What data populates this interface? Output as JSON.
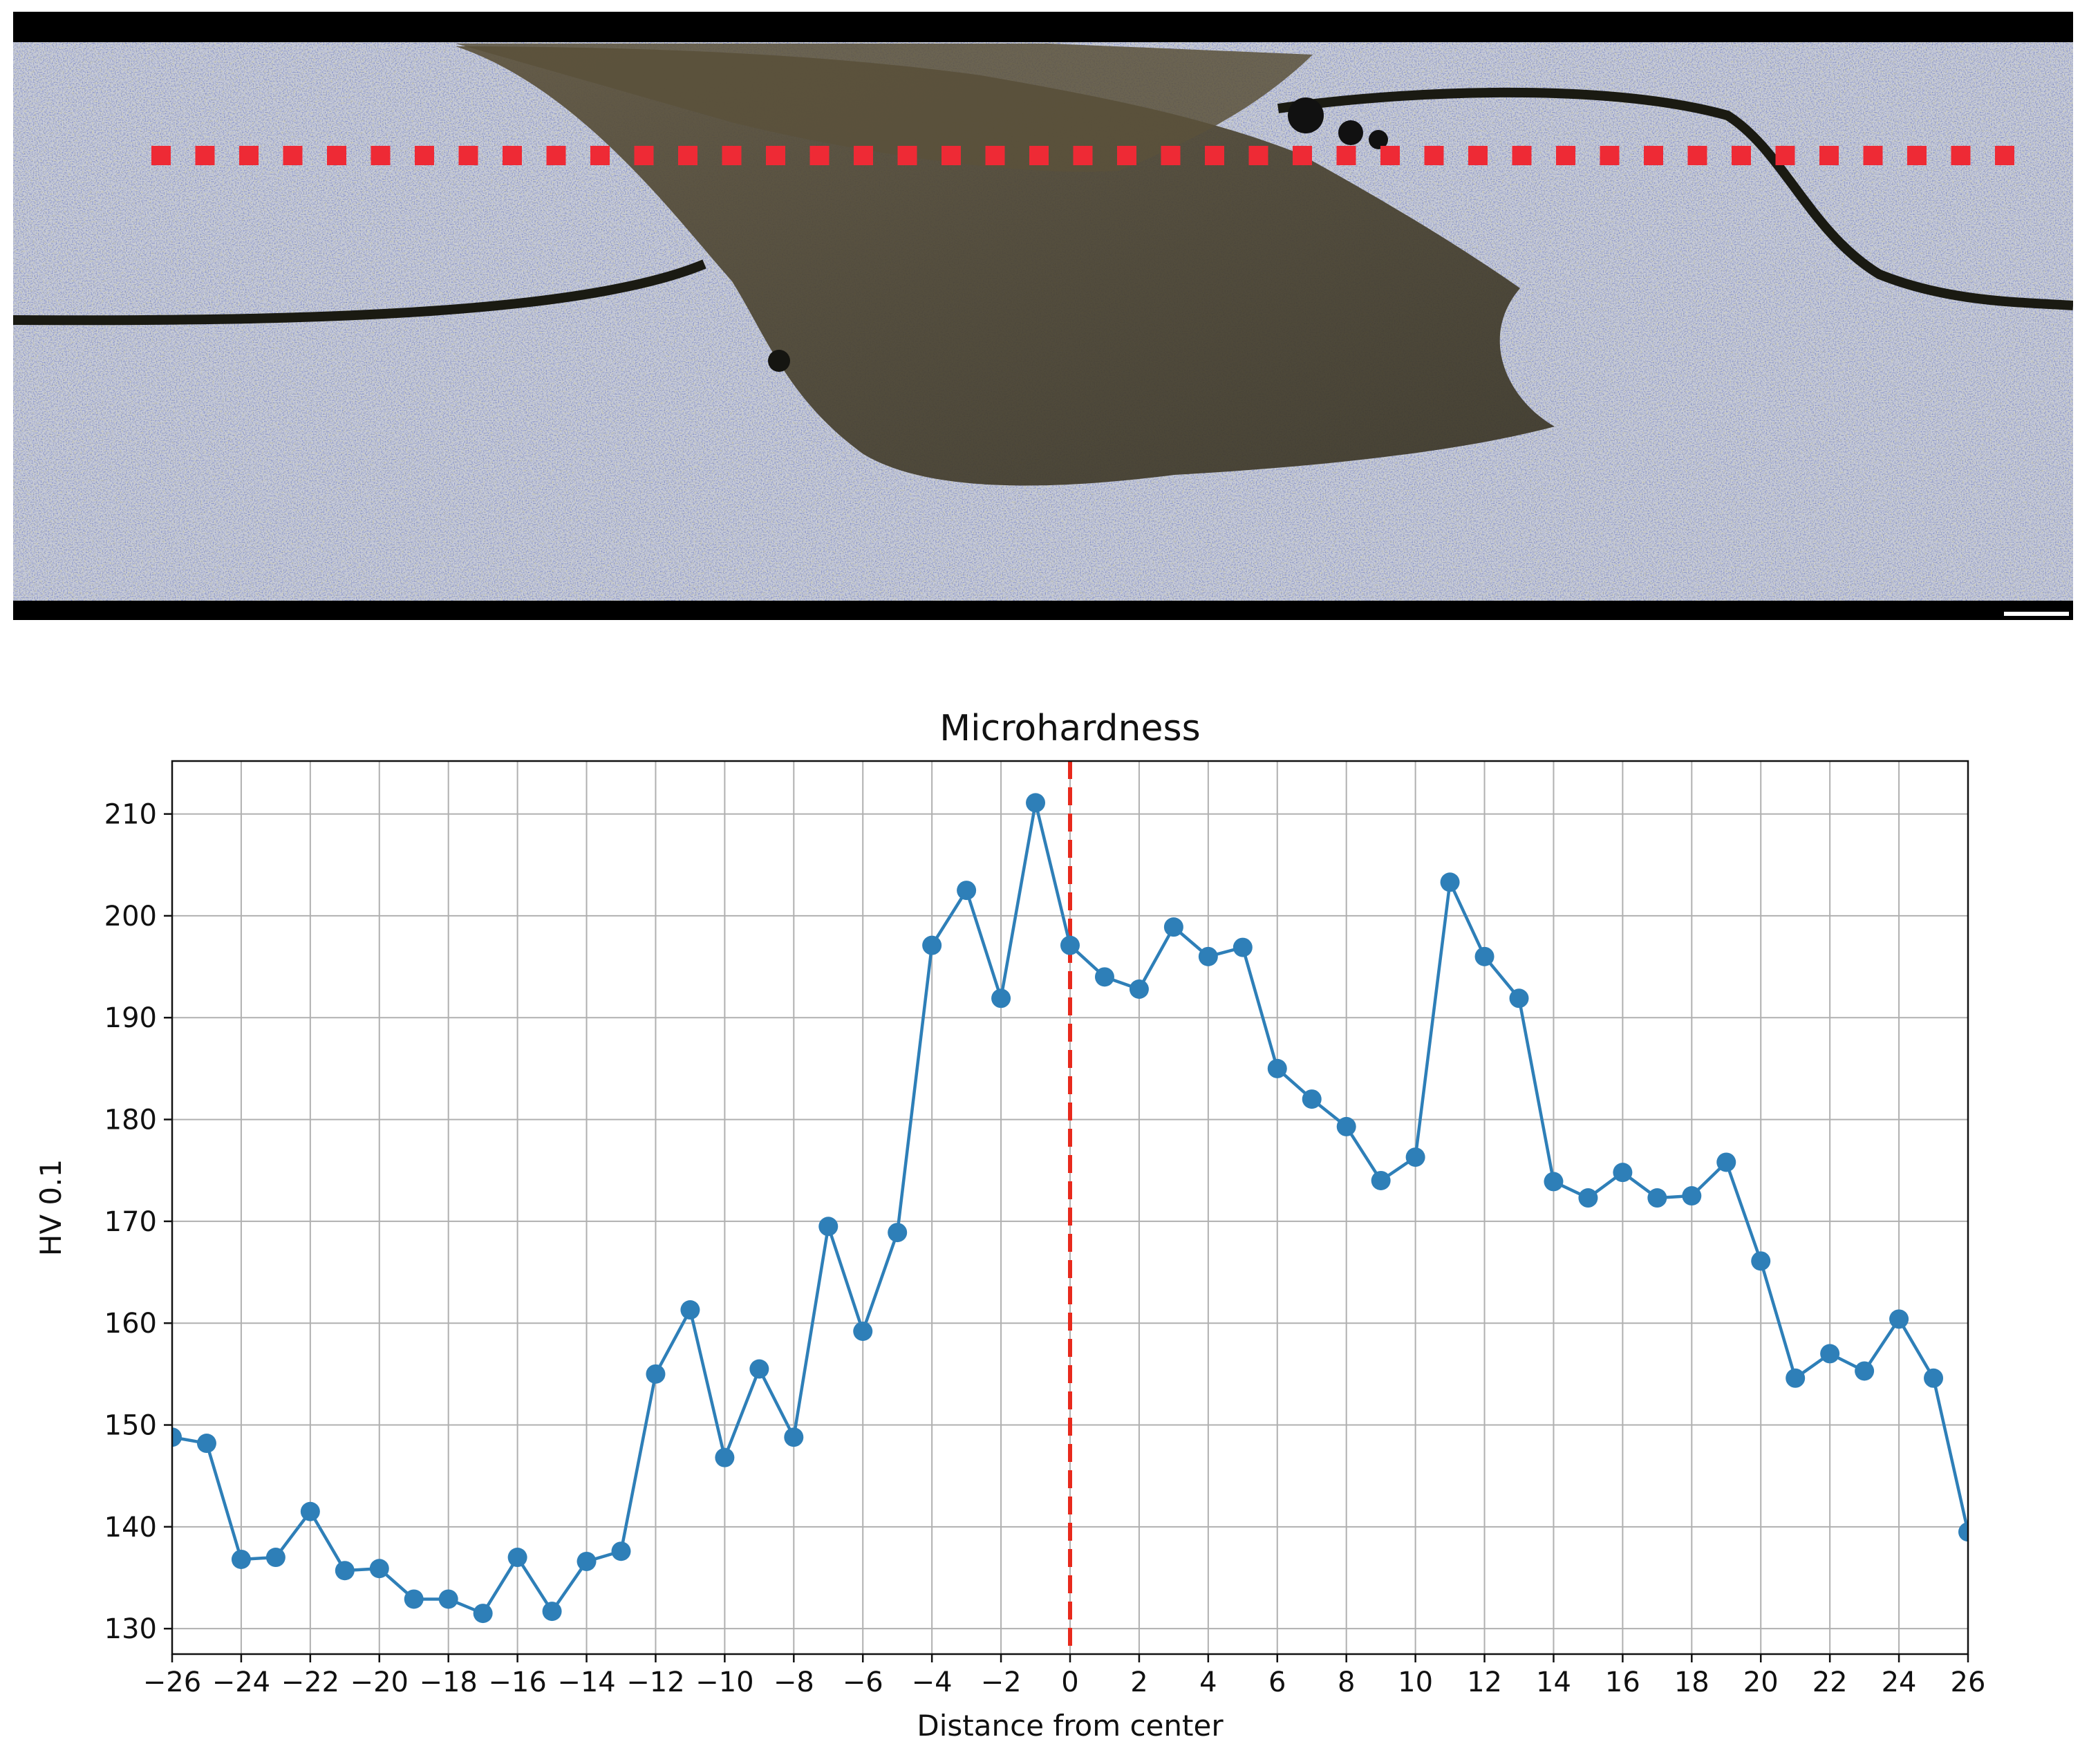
{
  "micrograph": {
    "description_hidden": "",
    "marker_color": "#ee2a35"
  },
  "chart_data": {
    "type": "line",
    "title": "Microhardness",
    "xlabel": "Distance from center",
    "ylabel": "HV 0.1",
    "xlim": [
      -26,
      26
    ],
    "ylim": [
      127.5,
      215.2
    ],
    "grid": true,
    "xticks": [
      -26,
      -24,
      -22,
      -20,
      -18,
      -16,
      -14,
      -12,
      -10,
      -8,
      -6,
      -4,
      -2,
      0,
      2,
      4,
      6,
      8,
      10,
      12,
      14,
      16,
      18,
      20,
      22,
      24,
      26
    ],
    "xtick_labels": [
      "−26",
      "−24",
      "−22",
      "−20",
      "−18",
      "−16",
      "−14",
      "−12",
      "−10",
      "−8",
      "−6",
      "−4",
      "−2",
      "0",
      "2",
      "4",
      "6",
      "8",
      "10",
      "12",
      "14",
      "16",
      "18",
      "20",
      "22",
      "24",
      "26"
    ],
    "yticks": [
      130,
      140,
      150,
      160,
      170,
      180,
      190,
      200,
      210
    ],
    "ytick_labels": [
      "130",
      "140",
      "150",
      "160",
      "170",
      "180",
      "190",
      "200",
      "210"
    ],
    "center_line": {
      "x": 0,
      "color": "#e8291c",
      "style": "dashed"
    },
    "series": [
      {
        "color": "#2e7fb8",
        "marker": "circle",
        "x": [
          -26,
          -25,
          -24,
          -23,
          -22,
          -21,
          -20,
          -19,
          -18,
          -17,
          -16,
          -15,
          -14,
          -13,
          -12,
          -11,
          -10,
          -9,
          -8,
          -7,
          -6,
          -5,
          -4,
          -3,
          -2,
          -1,
          0,
          1,
          2,
          3,
          4,
          5,
          6,
          7,
          8,
          9,
          10,
          11,
          12,
          13,
          14,
          15,
          16,
          17,
          18,
          19,
          20,
          21,
          22,
          23,
          24,
          25,
          26
        ],
        "y": [
          148.8,
          148.2,
          136.8,
          137.0,
          141.5,
          135.7,
          135.9,
          132.9,
          132.9,
          131.5,
          137.0,
          131.7,
          136.6,
          137.6,
          155.0,
          161.3,
          146.8,
          155.5,
          148.8,
          169.5,
          159.2,
          168.9,
          197.1,
          202.5,
          191.9,
          211.1,
          197.1,
          194.0,
          192.8,
          198.9,
          196.0,
          196.9,
          185.0,
          182.0,
          179.3,
          174.0,
          176.3,
          203.3,
          196.0,
          191.9,
          173.9,
          172.3,
          174.8,
          172.3,
          172.5,
          175.8,
          166.1,
          154.6,
          157.0,
          155.3,
          160.4,
          154.6,
          139.5
        ]
      }
    ]
  }
}
